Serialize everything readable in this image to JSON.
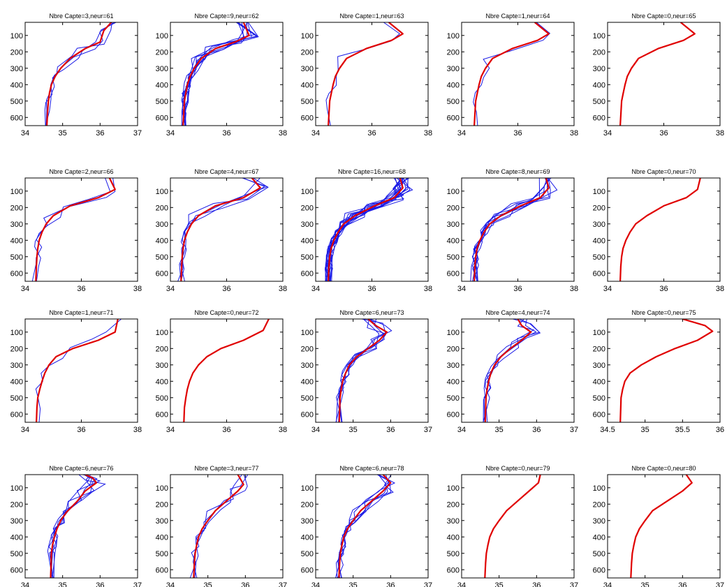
{
  "figure": {
    "background": "#ffffff",
    "red_color": "#e00000",
    "blue_color": "#1a1ae6"
  },
  "chart_data": [
    {
      "type": "line",
      "title": "Nbre Capte=3,neur=61",
      "xlim": [
        34,
        37
      ],
      "xticks": [
        34,
        35,
        36,
        37
      ],
      "ylim": [
        20,
        650
      ],
      "yticks": [
        100,
        200,
        300,
        400,
        500,
        600
      ],
      "y_reversed": true,
      "red_profile": {
        "x": [
          36.3,
          36.1,
          36.0,
          35.6,
          35.2,
          34.95,
          34.8,
          34.7,
          34.65,
          34.62,
          34.6,
          34.58
        ],
        "y": [
          20,
          70,
          140,
          180,
          240,
          300,
          350,
          400,
          450,
          500,
          560,
          650
        ]
      },
      "blue_profile_count": 3
    },
    {
      "type": "line",
      "title": "Nbre Capte=9,neur=62",
      "xlim": [
        34,
        38
      ],
      "xticks": [
        34,
        36,
        38
      ],
      "ylim": [
        20,
        650
      ],
      "yticks": [
        100,
        200,
        300,
        400,
        500,
        600
      ],
      "y_reversed": true,
      "red_profile": {
        "x": [
          36.6,
          36.8,
          36.3,
          35.6,
          35.1,
          34.85,
          34.7,
          34.6,
          34.55,
          34.5,
          34.48,
          34.45
        ],
        "y": [
          20,
          100,
          140,
          180,
          240,
          300,
          350,
          400,
          450,
          500,
          560,
          650
        ]
      },
      "blue_profile_count": 9
    },
    {
      "type": "line",
      "title": "Nbre Capte=1,neur=63",
      "xlim": [
        34,
        38
      ],
      "xticks": [
        34,
        36,
        38
      ],
      "ylim": [
        20,
        650
      ],
      "yticks": [
        100,
        200,
        300,
        400,
        500,
        600
      ],
      "y_reversed": true,
      "red_profile": {
        "x": [
          36.6,
          37.1,
          36.7,
          35.8,
          35.1,
          34.85,
          34.7,
          34.62,
          34.56,
          34.5,
          34.48,
          34.45
        ],
        "y": [
          20,
          90,
          130,
          180,
          240,
          300,
          350,
          400,
          450,
          500,
          560,
          650
        ]
      },
      "blue_profile_count": 1
    },
    {
      "type": "line",
      "title": "Nbre Capte=1,neur=64",
      "xlim": [
        34,
        38
      ],
      "xticks": [
        34,
        36,
        38
      ],
      "ylim": [
        20,
        650
      ],
      "yticks": [
        100,
        200,
        300,
        400,
        500,
        600
      ],
      "y_reversed": true,
      "red_profile": {
        "x": [
          36.6,
          37.1,
          36.7,
          35.8,
          35.1,
          34.85,
          34.7,
          34.62,
          34.56,
          34.5,
          34.48,
          34.45
        ],
        "y": [
          20,
          90,
          130,
          180,
          240,
          300,
          350,
          400,
          450,
          500,
          560,
          650
        ]
      },
      "blue_profile_count": 1
    },
    {
      "type": "line",
      "title": "Nbre Capte=0,neur=65",
      "xlim": [
        34,
        38
      ],
      "xticks": [
        34,
        36,
        38
      ],
      "ylim": [
        20,
        650
      ],
      "yticks": [
        100,
        200,
        300,
        400,
        500,
        600
      ],
      "y_reversed": true,
      "red_profile": {
        "x": [
          36.6,
          37.1,
          36.7,
          35.8,
          35.1,
          34.85,
          34.7,
          34.62,
          34.56,
          34.5,
          34.48,
          34.45
        ],
        "y": [
          20,
          90,
          130,
          180,
          240,
          300,
          350,
          400,
          450,
          500,
          560,
          650
        ]
      },
      "blue_profile_count": 0
    },
    {
      "type": "line",
      "title": "Nbre Capte=2,neur=66",
      "xlim": [
        34,
        38
      ],
      "xticks": [
        34,
        36,
        38
      ],
      "ylim": [
        20,
        650
      ],
      "yticks": [
        100,
        200,
        300,
        400,
        500,
        600
      ],
      "y_reversed": true,
      "red_profile": {
        "x": [
          37.0,
          37.2,
          36.6,
          35.6,
          35.0,
          34.75,
          34.6,
          34.5,
          34.45,
          34.42,
          34.4,
          34.38
        ],
        "y": [
          20,
          90,
          140,
          190,
          250,
          300,
          350,
          400,
          450,
          500,
          560,
          650
        ]
      },
      "blue_profile_count": 2
    },
    {
      "type": "line",
      "title": "Nbre Capte=4,neur=67",
      "xlim": [
        34,
        38
      ],
      "xticks": [
        34,
        36,
        38
      ],
      "ylim": [
        20,
        650
      ],
      "yticks": [
        100,
        200,
        300,
        400,
        500,
        600
      ],
      "y_reversed": true,
      "red_profile": {
        "x": [
          36.9,
          37.2,
          36.6,
          35.6,
          35.0,
          34.75,
          34.6,
          34.5,
          34.45,
          34.42,
          34.4,
          34.38
        ],
        "y": [
          20,
          80,
          140,
          190,
          250,
          300,
          350,
          400,
          450,
          500,
          560,
          650
        ]
      },
      "blue_profile_count": 4
    },
    {
      "type": "line",
      "title": "Nbre Capte=16,neur=68",
      "xlim": [
        34,
        38
      ],
      "xticks": [
        34,
        36,
        38
      ],
      "ylim": [
        20,
        650
      ],
      "yticks": [
        100,
        200,
        300,
        400,
        500,
        600
      ],
      "y_reversed": true,
      "red_profile": {
        "x": [
          37.0,
          37.1,
          36.8,
          36.1,
          35.4,
          35.0,
          34.8,
          34.65,
          34.55,
          34.5,
          34.47,
          34.45
        ],
        "y": [
          20,
          80,
          140,
          190,
          250,
          300,
          350,
          400,
          450,
          500,
          560,
          650
        ]
      },
      "blue_profile_count": 16
    },
    {
      "type": "line",
      "title": "Nbre Capte=8,neur=69",
      "xlim": [
        34,
        38
      ],
      "xticks": [
        34,
        36,
        38
      ],
      "ylim": [
        20,
        650
      ],
      "yticks": [
        100,
        200,
        300,
        400,
        500,
        600
      ],
      "y_reversed": true,
      "red_profile": {
        "x": [
          37.0,
          37.1,
          36.8,
          36.1,
          35.4,
          35.0,
          34.8,
          34.65,
          34.55,
          34.5,
          34.47,
          34.45
        ],
        "y": [
          20,
          80,
          140,
          190,
          250,
          300,
          350,
          400,
          450,
          500,
          560,
          650
        ]
      },
      "blue_profile_count": 8
    },
    {
      "type": "line",
      "title": "Nbre Capte=0,neur=70",
      "xlim": [
        34,
        38
      ],
      "xticks": [
        34,
        36,
        38
      ],
      "ylim": [
        20,
        650
      ],
      "yticks": [
        100,
        200,
        300,
        400,
        500,
        600
      ],
      "y_reversed": true,
      "red_profile": {
        "x": [
          37.3,
          37.2,
          36.8,
          36.0,
          35.4,
          35.0,
          34.8,
          34.65,
          34.55,
          34.5,
          34.47,
          34.45
        ],
        "y": [
          20,
          90,
          140,
          190,
          250,
          300,
          350,
          400,
          450,
          500,
          560,
          650
        ]
      },
      "blue_profile_count": 0
    },
    {
      "type": "line",
      "title": "Nbre Capte=1,neur=71",
      "xlim": [
        34,
        38
      ],
      "xticks": [
        34,
        36,
        38
      ],
      "ylim": [
        20,
        650
      ],
      "yticks": [
        100,
        200,
        300,
        400,
        500,
        600
      ],
      "y_reversed": true,
      "red_profile": {
        "x": [
          37.3,
          37.2,
          36.6,
          35.7,
          35.1,
          34.85,
          34.7,
          34.6,
          34.52,
          34.45,
          34.42,
          34.4
        ],
        "y": [
          20,
          100,
          150,
          200,
          250,
          300,
          350,
          400,
          450,
          500,
          560,
          650
        ]
      },
      "blue_profile_count": 1
    },
    {
      "type": "line",
      "title": "Nbre Capte=0,neur=72",
      "xlim": [
        34,
        38
      ],
      "xticks": [
        34,
        36,
        38
      ],
      "ylim": [
        20,
        650
      ],
      "yticks": [
        100,
        200,
        300,
        400,
        500,
        600
      ],
      "y_reversed": true,
      "red_profile": {
        "x": [
          37.5,
          37.3,
          36.6,
          35.8,
          35.3,
          35.0,
          34.8,
          34.68,
          34.6,
          34.55,
          34.5,
          34.48
        ],
        "y": [
          20,
          90,
          150,
          200,
          250,
          300,
          350,
          400,
          450,
          500,
          560,
          650
        ]
      },
      "blue_profile_count": 0
    },
    {
      "type": "line",
      "title": "Nbre Capte=6,neur=73",
      "xlim": [
        34,
        37
      ],
      "xticks": [
        34,
        35,
        36,
        37
      ],
      "ylim": [
        20,
        650
      ],
      "yticks": [
        100,
        200,
        300,
        400,
        500,
        600
      ],
      "y_reversed": true,
      "red_profile": {
        "x": [
          35.4,
          35.6,
          35.9,
          35.7,
          35.4,
          35.1,
          34.9,
          34.8,
          34.72,
          34.68,
          34.65,
          34.63
        ],
        "y": [
          20,
          60,
          100,
          150,
          200,
          250,
          300,
          350,
          400,
          450,
          500,
          650
        ]
      },
      "blue_profile_count": 6
    },
    {
      "type": "line",
      "title": "Nbre Capte=4,neur=74",
      "xlim": [
        34,
        37
      ],
      "xticks": [
        34,
        35,
        36,
        37
      ],
      "ylim": [
        20,
        650
      ],
      "yticks": [
        100,
        200,
        300,
        400,
        500,
        600
      ],
      "y_reversed": true,
      "red_profile": {
        "x": [
          35.5,
          35.6,
          35.85,
          35.6,
          35.3,
          35.05,
          34.88,
          34.78,
          34.72,
          34.68,
          34.65,
          34.63
        ],
        "y": [
          20,
          60,
          100,
          150,
          200,
          250,
          300,
          350,
          400,
          450,
          500,
          650
        ]
      },
      "blue_profile_count": 4
    },
    {
      "type": "line",
      "title": "Nbre Capte=0,neur=75",
      "xlim": [
        34.5,
        36
      ],
      "xticks": [
        34.5,
        35,
        35.5,
        36
      ],
      "ylim": [
        20,
        650
      ],
      "yticks": [
        100,
        200,
        300,
        400,
        500,
        600
      ],
      "y_reversed": true,
      "red_profile": {
        "x": [
          35.5,
          35.8,
          35.9,
          35.7,
          35.4,
          35.15,
          34.95,
          34.8,
          34.73,
          34.7,
          34.68,
          34.67
        ],
        "y": [
          20,
          60,
          95,
          150,
          200,
          250,
          300,
          350,
          400,
          450,
          500,
          650
        ]
      },
      "blue_profile_count": 0
    },
    {
      "type": "line",
      "title": "Nbre Capte=6,neur=76",
      "xlim": [
        34,
        37
      ],
      "xticks": [
        34,
        35,
        36,
        37
      ],
      "ylim": [
        20,
        650
      ],
      "yticks": [
        100,
        200,
        300,
        400,
        500,
        600
      ],
      "y_reversed": true,
      "red_profile": {
        "x": [
          35.6,
          35.8,
          35.9,
          35.6,
          35.4,
          35.1,
          34.95,
          34.85,
          34.78,
          34.73,
          34.7,
          34.68
        ],
        "y": [
          20,
          40,
          70,
          120,
          180,
          250,
          300,
          350,
          400,
          450,
          500,
          650
        ]
      },
      "blue_profile_count": 6
    },
    {
      "type": "line",
      "title": "Nbre Capte=3,neur=77",
      "xlim": [
        34,
        37
      ],
      "xticks": [
        34,
        35,
        36,
        37
      ],
      "ylim": [
        20,
        650
      ],
      "yticks": [
        100,
        200,
        300,
        400,
        500,
        600
      ],
      "y_reversed": true,
      "red_profile": {
        "x": [
          35.8,
          35.95,
          35.8,
          35.5,
          35.2,
          35.0,
          34.85,
          34.75,
          34.7,
          34.66,
          34.64,
          34.62
        ],
        "y": [
          20,
          80,
          120,
          180,
          240,
          300,
          350,
          400,
          450,
          500,
          560,
          650
        ]
      },
      "blue_profile_count": 3
    },
    {
      "type": "line",
      "title": "Nbre Capte=6,neur=78",
      "xlim": [
        34,
        37
      ],
      "xticks": [
        34,
        35,
        36,
        37
      ],
      "ylim": [
        20,
        650
      ],
      "yticks": [
        100,
        200,
        300,
        400,
        500,
        600
      ],
      "y_reversed": true,
      "red_profile": {
        "x": [
          35.8,
          36.0,
          35.8,
          35.5,
          35.2,
          35.0,
          34.85,
          34.75,
          34.7,
          34.66,
          34.64,
          34.62
        ],
        "y": [
          20,
          70,
          120,
          180,
          240,
          300,
          350,
          400,
          450,
          500,
          560,
          650
        ]
      },
      "blue_profile_count": 6
    },
    {
      "type": "line",
      "title": "Nbre Capte=0,neur=79",
      "xlim": [
        34,
        37
      ],
      "xticks": [
        34,
        35,
        36,
        37
      ],
      "ylim": [
        20,
        650
      ],
      "yticks": [
        100,
        200,
        300,
        400,
        500,
        600
      ],
      "y_reversed": true,
      "red_profile": {
        "x": [
          36.1,
          36.05,
          35.8,
          35.5,
          35.2,
          35.0,
          34.85,
          34.75,
          34.7,
          34.66,
          34.64,
          34.62
        ],
        "y": [
          20,
          70,
          120,
          180,
          240,
          300,
          350,
          400,
          450,
          500,
          560,
          650
        ]
      },
      "blue_profile_count": 0
    },
    {
      "type": "line",
      "title": "Nbre Capte=0,neur=80",
      "xlim": [
        34,
        37
      ],
      "xticks": [
        34,
        35,
        36,
        37
      ],
      "ylim": [
        20,
        650
      ],
      "yticks": [
        100,
        200,
        300,
        400,
        500,
        600
      ],
      "y_reversed": true,
      "red_profile": {
        "x": [
          36.1,
          36.25,
          36.0,
          35.6,
          35.2,
          35.0,
          34.85,
          34.75,
          34.7,
          34.66,
          34.64,
          34.62
        ],
        "y": [
          20,
          70,
          120,
          180,
          240,
          300,
          350,
          400,
          450,
          500,
          560,
          650
        ]
      },
      "blue_profile_count": 0
    }
  ]
}
